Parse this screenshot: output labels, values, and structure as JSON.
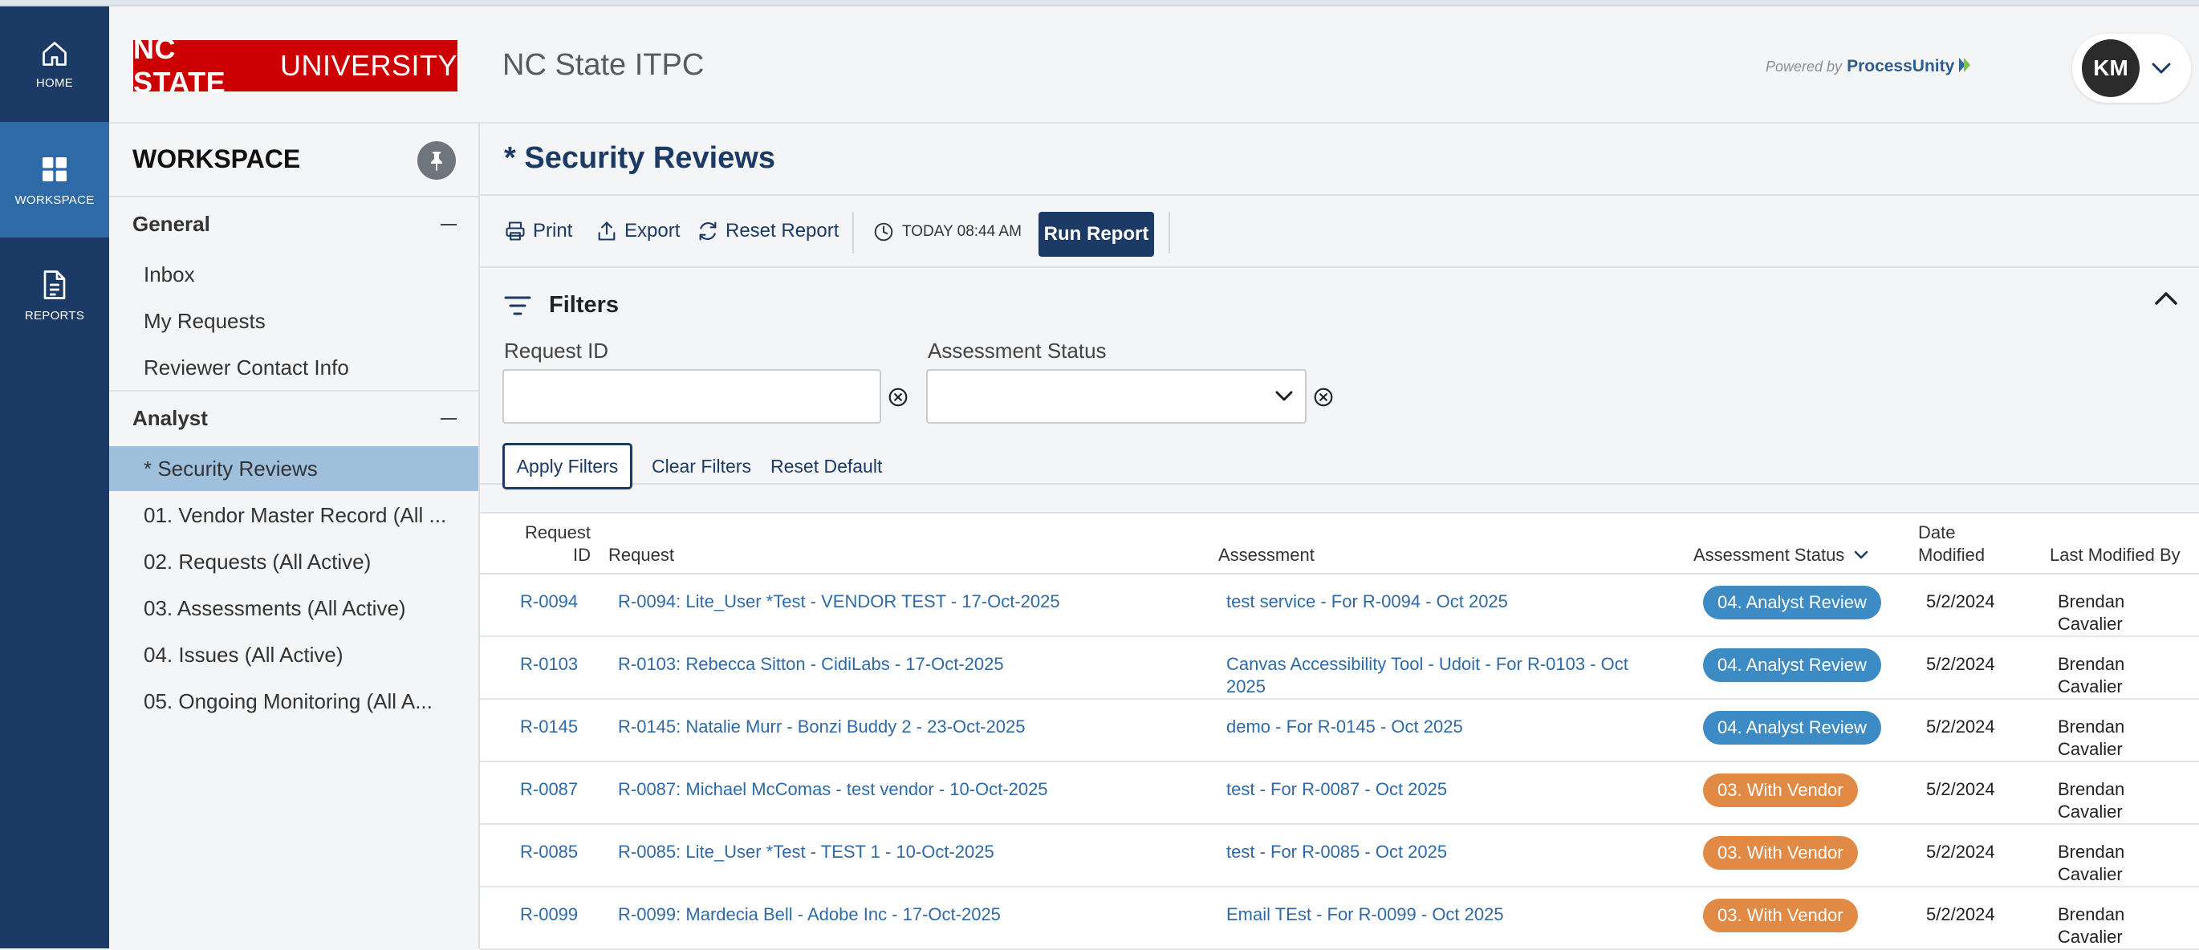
{
  "rail": [
    {
      "label": "HOME",
      "icon": "home-icon"
    },
    {
      "label": "WORKSPACE",
      "icon": "grid-icon",
      "active": true
    },
    {
      "label": "REPORTS",
      "icon": "document-icon"
    }
  ],
  "header": {
    "logo_bold": "NC STATE",
    "logo_rest": "UNIVERSITY",
    "app_title": "NC State ITPC",
    "powered_prefix": "Powered by",
    "powered_brand": "ProcessUnity",
    "user_initials": "KM"
  },
  "sidebar": {
    "title": "WORKSPACE",
    "general": {
      "label": "General",
      "items": [
        "Inbox",
        "My Requests",
        "Reviewer Contact Info"
      ]
    },
    "analyst": {
      "label": "Analyst",
      "items": [
        "* Security Reviews",
        "01. Vendor Master Record (All ...",
        "02. Requests (All Active)",
        "03. Assessments (All Active)",
        "04. Issues (All Active)",
        "05. Ongoing Monitoring (All A..."
      ]
    }
  },
  "main": {
    "title": "* Security Reviews",
    "toolbar": {
      "print": "Print",
      "export": "Export",
      "reset_report": "Reset Report",
      "timestamp": "TODAY 08:44 AM",
      "run_report": "Run Report"
    },
    "filters": {
      "title": "Filters",
      "request_id_label": "Request ID",
      "request_id_value": "",
      "assessment_status_label": "Assessment Status",
      "assessment_status_value": "",
      "apply": "Apply Filters",
      "clear": "Clear Filters",
      "reset_default": "Reset Default"
    },
    "table": {
      "headers": {
        "request_id_1": "Request",
        "request_id_2": "ID",
        "request": "Request",
        "assessment": "Assessment",
        "status": "Assessment Status",
        "date_1": "Date",
        "date_2": "Modified",
        "modified_by": "Last Modified By"
      },
      "rows": [
        {
          "id": "R-0094",
          "request": "R-0094: Lite_User *Test - VENDOR TEST - 17-Oct-2025",
          "assessment_1": "test service - For R-0094 - Oct 2025",
          "assessment_2": "",
          "status": "04. Analyst Review",
          "status_color": "#3d8bc4",
          "date": "5/2/2024",
          "by_1": "Brendan",
          "by_2": "Cavalier"
        },
        {
          "id": "R-0103",
          "request": "R-0103: Rebecca Sitton - CidiLabs - 17-Oct-2025",
          "assessment_1": "Canvas Accessibility Tool - Udoit - For R-0103 - Oct",
          "assessment_2": "2025",
          "status": "04. Analyst Review",
          "status_color": "#3d8bc4",
          "date": "5/2/2024",
          "by_1": "Brendan",
          "by_2": "Cavalier"
        },
        {
          "id": "R-0145",
          "request": "R-0145: Natalie Murr - Bonzi Buddy 2 - 23-Oct-2025",
          "assessment_1": "demo - For R-0145 - Oct 2025",
          "assessment_2": "",
          "status": "04. Analyst Review",
          "status_color": "#3d8bc4",
          "date": "5/2/2024",
          "by_1": "Brendan",
          "by_2": "Cavalier"
        },
        {
          "id": "R-0087",
          "request": "R-0087: Michael McComas - test vendor - 10-Oct-2025",
          "assessment_1": "test - For R-0087 - Oct 2025",
          "assessment_2": "",
          "status": "03. With Vendor",
          "status_color": "#e08a46",
          "date": "5/2/2024",
          "by_1": "Brendan",
          "by_2": "Cavalier"
        },
        {
          "id": "R-0085",
          "request": "R-0085: Lite_User *Test - TEST 1 - 10-Oct-2025",
          "assessment_1": "test - For R-0085 - Oct 2025",
          "assessment_2": "",
          "status": "03. With Vendor",
          "status_color": "#e08a46",
          "date": "5/2/2024",
          "by_1": "Brendan",
          "by_2": "Cavalier"
        },
        {
          "id": "R-0099",
          "request": "R-0099: Mardecia Bell - Adobe Inc - 17-Oct-2025",
          "assessment_1": "Email TEst - For R-0099 - Oct 2025",
          "assessment_2": "",
          "status": "03. With Vendor",
          "status_color": "#e08a46",
          "date": "5/2/2024",
          "by_1": "Brendan",
          "by_2": "Cavalier"
        }
      ]
    }
  }
}
